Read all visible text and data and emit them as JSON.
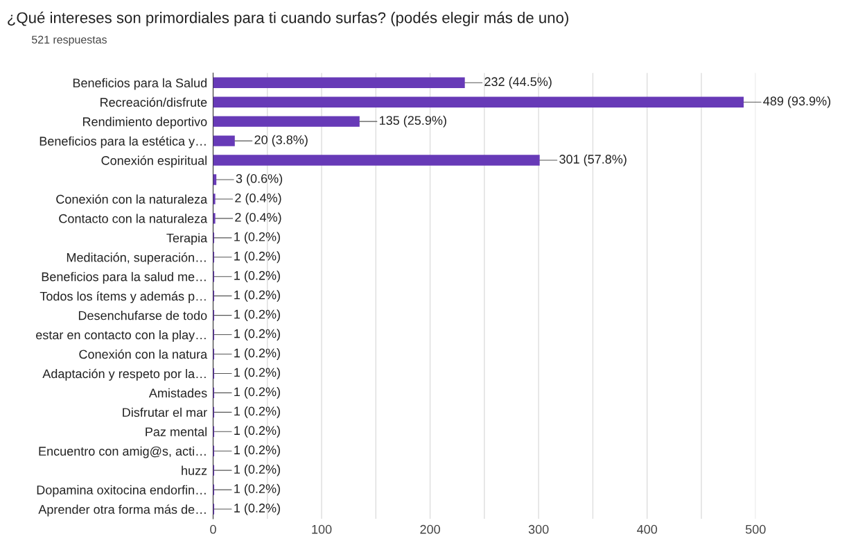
{
  "chart_data": {
    "type": "bar",
    "orientation": "horizontal",
    "title": "¿Qué intereses son primordiales para ti cuando surfas? (podés elegir más de uno)",
    "subtitle": "521 respuestas",
    "categories": [
      "Beneficios para la Salud",
      "Recreación/disfrute",
      "Rendimiento deportivo",
      "Beneficios para la estética y…",
      "Conexión espiritual",
      null,
      "Conexión con la naturaleza",
      "Contacto con la naturaleza",
      "Terapia",
      "Meditación, superación…",
      "Beneficios para la salud me…",
      "Todos los ítems y además p…",
      "Desenchufarse de todo",
      "estar en contacto con la play…",
      "Conexión con la natura",
      "Adaptación y respeto por la…",
      "Amistades",
      "Disfrutar el mar",
      "Paz mental",
      "Encuentro con amig@s, acti…",
      "huzz",
      "Dopamina oxitocina endorfin…",
      "Aprender otra forma más de…"
    ],
    "values": [
      232,
      489,
      135,
      20,
      301,
      3,
      2,
      2,
      1,
      1,
      1,
      1,
      1,
      1,
      1,
      1,
      1,
      1,
      1,
      1,
      1,
      1,
      1
    ],
    "value_labels": [
      "232 (44.5%)",
      "489 (93.9%)",
      "135 (25.9%)",
      "20 (3.8%)",
      "301 (57.8%)",
      "3 (0.6%)",
      "2 (0.4%)",
      "2 (0.4%)",
      "1 (0.2%)",
      "1 (0.2%)",
      "1 (0.2%)",
      "1 (0.2%)",
      "1 (0.2%)",
      "1 (0.2%)",
      "1 (0.2%)",
      "1 (0.2%)",
      "1 (0.2%)",
      "1 (0.2%)",
      "1 (0.2%)",
      "1 (0.2%)",
      "1 (0.2%)",
      "1 (0.2%)",
      "1 (0.2%)"
    ],
    "color": "#673ab7",
    "xlim": [
      0,
      500
    ],
    "xticks": [
      0,
      {
        "value": 50,
        "label": null
      },
      100,
      {
        "value": 150,
        "label": null
      },
      200,
      {
        "value": 250,
        "label": null
      },
      300,
      {
        "value": 350,
        "label": null
      },
      400,
      {
        "value": 450,
        "label": null
      },
      500
    ],
    "grid": "x",
    "legend": false
  }
}
